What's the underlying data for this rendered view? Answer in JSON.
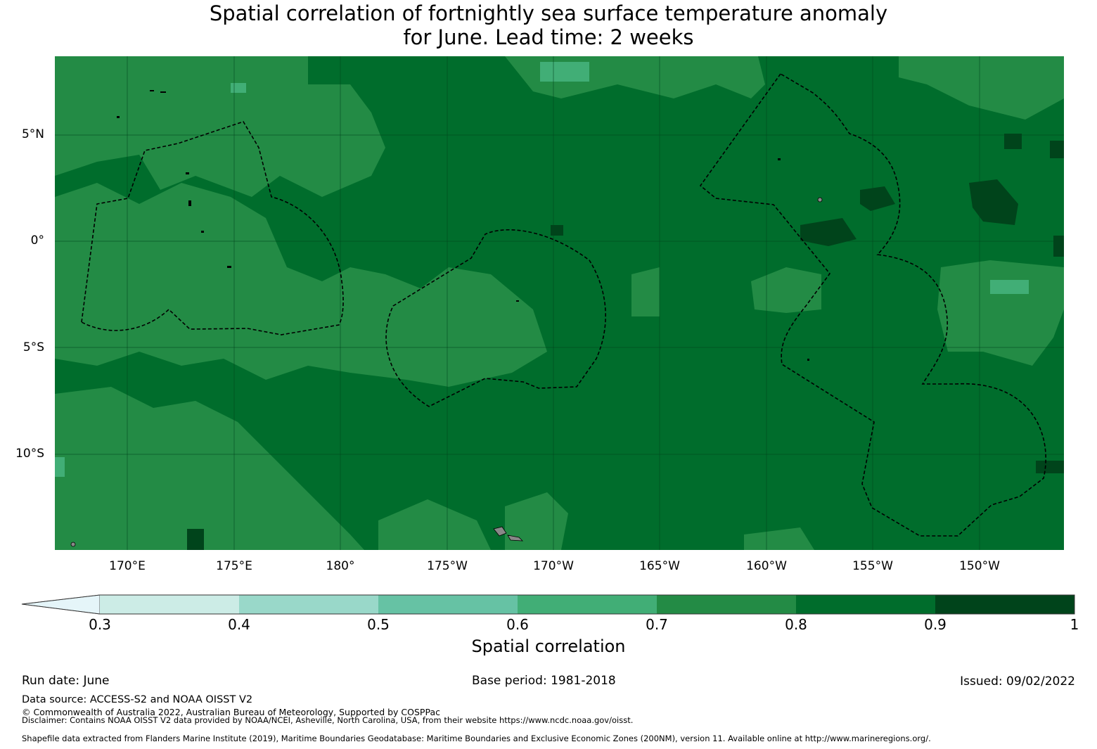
{
  "title_line1": "Spatial correlation of fortnightly sea surface temperature anomaly",
  "title_line2": "for June. Lead time: 2 weeks",
  "map": {
    "lat_ticks": [
      "5°N",
      "0°",
      "5°S",
      "10°S"
    ],
    "lon_ticks": [
      "170°E",
      "175°E",
      "180°",
      "175°W",
      "170°W",
      "165°W",
      "160°W",
      "155°W",
      "150°W"
    ]
  },
  "colorbar": {
    "label": "Spatial correlation",
    "ticks": [
      "0.3",
      "0.4",
      "0.5",
      "0.6",
      "0.7",
      "0.8",
      "0.9",
      "1"
    ],
    "colors": [
      "#e5f5f9",
      "#ccece6",
      "#99d8c9",
      "#66c2a4",
      "#41ae76",
      "#238b45",
      "#006d2c",
      "#00441b"
    ]
  },
  "footer": {
    "run_date": "Run date: June",
    "base_period": "Base period: 1981-2018",
    "issued": "Issued: 09/02/2022",
    "data_source": "Data source: ACCESS-S2 and NOAA OISST V2",
    "copyright": "© Commonwealth of Australia 2022, Australian Bureau of Meteorology, Supported by COSPPac",
    "disclaimer": "Disclaimer: Contains NOAA OISST V2 data provided by NOAA/NCEI, Asheville, North Carolina, USA, from their website https://www.ncdc.noaa.gov/oisst.",
    "shapefile": "Shapefile data extracted from Flanders Marine Institute (2019), Maritime Boundaries Geodatabase: Maritime Boundaries and Exclusive Economic Zones (200NM), version 11. Available online at http://www.marineregions.org/."
  }
}
